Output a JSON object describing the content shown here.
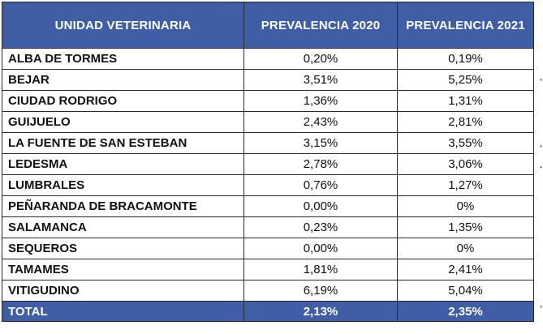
{
  "table": {
    "headers": {
      "unit": "UNIDAD VETERINARIA",
      "y2020": "PREVALENCIA 2020",
      "y2021": "PREVALENCIA 2021"
    },
    "rows": [
      {
        "unit": "ALBA DE TORMES",
        "y2020": "0,20%",
        "y2021": "0,19%"
      },
      {
        "unit": "BEJAR",
        "y2020": "3,51%",
        "y2021": "5,25%"
      },
      {
        "unit": "CIUDAD RODRIGO",
        "y2020": "1,36%",
        "y2021": "1,31%"
      },
      {
        "unit": "GUIJUELO",
        "y2020": "2,43%",
        "y2021": "2,81%"
      },
      {
        "unit": "LA FUENTE DE SAN ESTEBAN",
        "y2020": "3,15%",
        "y2021": "3,55%"
      },
      {
        "unit": "LEDESMA",
        "y2020": "2,78%",
        "y2021": "3,06%"
      },
      {
        "unit": "LUMBRALES",
        "y2020": "0,76%",
        "y2021": "1,27%"
      },
      {
        "unit": "PEÑARANDA DE BRACAMONTE",
        "y2020": "0,00%",
        "y2021": "0%"
      },
      {
        "unit": "SALAMANCA",
        "y2020": "0,23%",
        "y2021": "1,35%"
      },
      {
        "unit": "SEQUEROS",
        "y2020": "0,00%",
        "y2021": "0%"
      },
      {
        "unit": "TAMAMES",
        "y2020": "1,81%",
        "y2021": "2,41%"
      },
      {
        "unit": "VITIGUDINO",
        "y2020": "6,19%",
        "y2021": "5,04%"
      }
    ],
    "total": {
      "unit": "TOTAL",
      "y2020": "2,13%",
      "y2021": "2,35%"
    }
  },
  "colors": {
    "header_bg": "#3f5ea6",
    "header_text": "#ffffff",
    "border": "#2b2b2b"
  }
}
